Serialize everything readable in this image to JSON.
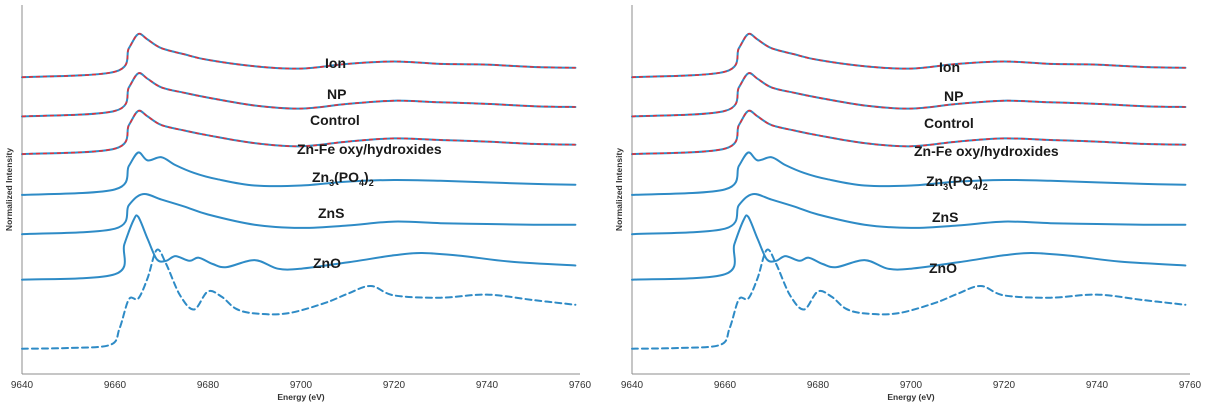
{
  "chart_data": [
    {
      "type": "line",
      "title": "",
      "xlabel": "Energy (eV)",
      "ylabel": "Normalized Intensity",
      "xlim": [
        9640,
        9760
      ],
      "x_ticks": [
        "9640",
        "9660",
        "9680",
        "9700",
        "9720",
        "9740",
        "9760"
      ],
      "grid": false,
      "series": [
        {
          "name": "Ion",
          "style": "solid-blue-with-red-dashed-fit",
          "x": [
            9640,
            9660,
            9663,
            9665,
            9667,
            9670,
            9675,
            9680,
            9690,
            9700,
            9710,
            9720,
            9730,
            9740,
            9750,
            9759
          ],
          "y": [
            3.08,
            3.15,
            3.45,
            3.63,
            3.56,
            3.45,
            3.37,
            3.3,
            3.22,
            3.19,
            3.25,
            3.28,
            3.25,
            3.24,
            3.21,
            3.2
          ]
        },
        {
          "name": "NP",
          "style": "solid-blue-with-red-dashed-fit",
          "x": [
            9640,
            9660,
            9663,
            9665,
            9667,
            9670,
            9675,
            9680,
            9690,
            9700,
            9710,
            9720,
            9730,
            9740,
            9750,
            9759
          ],
          "y": [
            2.58,
            2.65,
            2.95,
            3.13,
            3.06,
            2.95,
            2.88,
            2.82,
            2.72,
            2.68,
            2.74,
            2.78,
            2.76,
            2.74,
            2.71,
            2.7
          ]
        },
        {
          "name": "Control",
          "style": "solid-blue-with-red-dashed-fit",
          "x": [
            9640,
            9660,
            9663,
            9665,
            9667,
            9670,
            9675,
            9680,
            9690,
            9700,
            9710,
            9720,
            9730,
            9740,
            9750,
            9759
          ],
          "y": [
            2.1,
            2.17,
            2.47,
            2.65,
            2.58,
            2.47,
            2.4,
            2.34,
            2.24,
            2.2,
            2.26,
            2.3,
            2.28,
            2.26,
            2.23,
            2.22
          ]
        },
        {
          "name": "Zn-Fe oxy/hydroxides",
          "style": "solid-blue",
          "x": [
            9640,
            9660,
            9663,
            9665,
            9667,
            9670,
            9673,
            9677,
            9682,
            9690,
            9700,
            9710,
            9720,
            9730,
            9740,
            9750,
            9759
          ],
          "y": [
            1.58,
            1.65,
            1.95,
            2.12,
            2.02,
            2.06,
            1.96,
            1.86,
            1.78,
            1.7,
            1.7,
            1.75,
            1.77,
            1.76,
            1.74,
            1.72,
            1.71
          ]
        },
        {
          "name": "Zn3(PO4)2",
          "style": "solid-blue",
          "x": [
            9640,
            9660,
            9663,
            9666,
            9670,
            9675,
            9680,
            9690,
            9700,
            9710,
            9720,
            9730,
            9740,
            9750,
            9759
          ],
          "y": [
            1.08,
            1.15,
            1.45,
            1.59,
            1.52,
            1.43,
            1.33,
            1.2,
            1.16,
            1.19,
            1.24,
            1.22,
            1.21,
            1.2,
            1.2
          ]
        },
        {
          "name": "ZnS",
          "style": "solid-blue",
          "x": [
            9640,
            9660,
            9662,
            9664,
            9665,
            9667,
            9669,
            9671,
            9673,
            9676,
            9678,
            9681,
            9684,
            9690,
            9695,
            9700,
            9710,
            9720,
            9726,
            9735,
            9745,
            9759
          ],
          "y": [
            0.5,
            0.57,
            0.95,
            1.26,
            1.3,
            1.02,
            0.76,
            0.74,
            0.8,
            0.74,
            0.78,
            0.7,
            0.66,
            0.75,
            0.64,
            0.64,
            0.72,
            0.81,
            0.84,
            0.8,
            0.73,
            0.68
          ]
        },
        {
          "name": "ZnO",
          "style": "dashed-blue",
          "x": [
            9640,
            9650,
            9659,
            9661,
            9663,
            9665,
            9667,
            9669,
            9671,
            9674,
            9677,
            9680,
            9683,
            9686,
            9690,
            9697,
            9705,
            9710,
            9715,
            9720,
            9730,
            9740,
            9750,
            9759
          ],
          "y": [
            -0.38,
            -0.37,
            -0.33,
            -0.12,
            0.25,
            0.26,
            0.52,
            0.88,
            0.7,
            0.3,
            0.12,
            0.35,
            0.28,
            0.13,
            0.07,
            0.07,
            0.2,
            0.32,
            0.42,
            0.3,
            0.27,
            0.31,
            0.24,
            0.18
          ]
        }
      ]
    },
    {
      "type": "line",
      "title": "",
      "xlabel": "Energy (eV)",
      "ylabel": "Normalized Intensity",
      "xlim": [
        9640,
        9760
      ],
      "x_ticks": [
        "9640",
        "9660",
        "9680",
        "9700",
        "9720",
        "9740",
        "9760"
      ],
      "grid": false,
      "series": [
        {
          "name": "Ion",
          "style": "solid-blue-with-red-dashed-fit",
          "x": [
            9640,
            9660,
            9663,
            9665,
            9667,
            9670,
            9675,
            9680,
            9690,
            9700,
            9710,
            9720,
            9730,
            9740,
            9750,
            9759
          ],
          "y": [
            3.08,
            3.15,
            3.45,
            3.63,
            3.56,
            3.45,
            3.37,
            3.3,
            3.22,
            3.19,
            3.25,
            3.28,
            3.25,
            3.24,
            3.21,
            3.2
          ]
        },
        {
          "name": "NP",
          "style": "solid-blue-with-red-dashed-fit",
          "x": [
            9640,
            9660,
            9663,
            9665,
            9667,
            9670,
            9675,
            9680,
            9690,
            9700,
            9710,
            9720,
            9730,
            9740,
            9750,
            9759
          ],
          "y": [
            2.58,
            2.65,
            2.95,
            3.13,
            3.06,
            2.95,
            2.88,
            2.82,
            2.72,
            2.68,
            2.74,
            2.78,
            2.76,
            2.74,
            2.71,
            2.7
          ]
        },
        {
          "name": "Control",
          "style": "solid-blue-with-red-dashed-fit",
          "x": [
            9640,
            9660,
            9663,
            9665,
            9667,
            9670,
            9675,
            9680,
            9690,
            9700,
            9710,
            9720,
            9730,
            9740,
            9750,
            9759
          ],
          "y": [
            2.1,
            2.17,
            2.47,
            2.65,
            2.58,
            2.47,
            2.4,
            2.34,
            2.24,
            2.2,
            2.26,
            2.3,
            2.28,
            2.26,
            2.23,
            2.22
          ]
        },
        {
          "name": "Zn-Fe oxy/hydroxides",
          "style": "solid-blue",
          "x": [
            9640,
            9660,
            9663,
            9665,
            9667,
            9670,
            9673,
            9677,
            9682,
            9690,
            9700,
            9710,
            9720,
            9730,
            9740,
            9750,
            9759
          ],
          "y": [
            1.58,
            1.65,
            1.95,
            2.12,
            2.02,
            2.06,
            1.96,
            1.86,
            1.78,
            1.7,
            1.7,
            1.75,
            1.77,
            1.76,
            1.74,
            1.72,
            1.71
          ]
        },
        {
          "name": "Zn3(PO4)2",
          "style": "solid-blue",
          "x": [
            9640,
            9660,
            9663,
            9666,
            9670,
            9675,
            9680,
            9690,
            9700,
            9710,
            9720,
            9730,
            9740,
            9750,
            9759
          ],
          "y": [
            1.08,
            1.15,
            1.45,
            1.59,
            1.52,
            1.43,
            1.33,
            1.2,
            1.16,
            1.19,
            1.24,
            1.22,
            1.21,
            1.2,
            1.2
          ]
        },
        {
          "name": "ZnS",
          "style": "solid-blue",
          "x": [
            9640,
            9660,
            9662,
            9664,
            9665,
            9667,
            9669,
            9671,
            9673,
            9676,
            9678,
            9681,
            9684,
            9690,
            9695,
            9700,
            9710,
            9720,
            9726,
            9735,
            9745,
            9759
          ],
          "y": [
            0.5,
            0.57,
            0.95,
            1.26,
            1.3,
            1.02,
            0.76,
            0.74,
            0.8,
            0.74,
            0.78,
            0.7,
            0.66,
            0.75,
            0.64,
            0.64,
            0.72,
            0.81,
            0.84,
            0.8,
            0.73,
            0.68
          ]
        },
        {
          "name": "ZnO",
          "style": "dashed-blue",
          "x": [
            9640,
            9650,
            9659,
            9661,
            9663,
            9665,
            9667,
            9669,
            9671,
            9674,
            9677,
            9680,
            9683,
            9686,
            9690,
            9697,
            9705,
            9710,
            9715,
            9720,
            9730,
            9740,
            9750,
            9759
          ],
          "y": [
            -0.38,
            -0.37,
            -0.33,
            -0.12,
            0.25,
            0.26,
            0.52,
            0.88,
            0.7,
            0.3,
            0.12,
            0.35,
            0.28,
            0.13,
            0.07,
            0.07,
            0.2,
            0.32,
            0.42,
            0.3,
            0.27,
            0.31,
            0.24,
            0.18
          ]
        }
      ]
    }
  ],
  "colors": {
    "series_blue": "#2e8bc6",
    "fit_red": "#e0313a",
    "axis": "#8c8c8c",
    "text": "#1a1a1a"
  }
}
